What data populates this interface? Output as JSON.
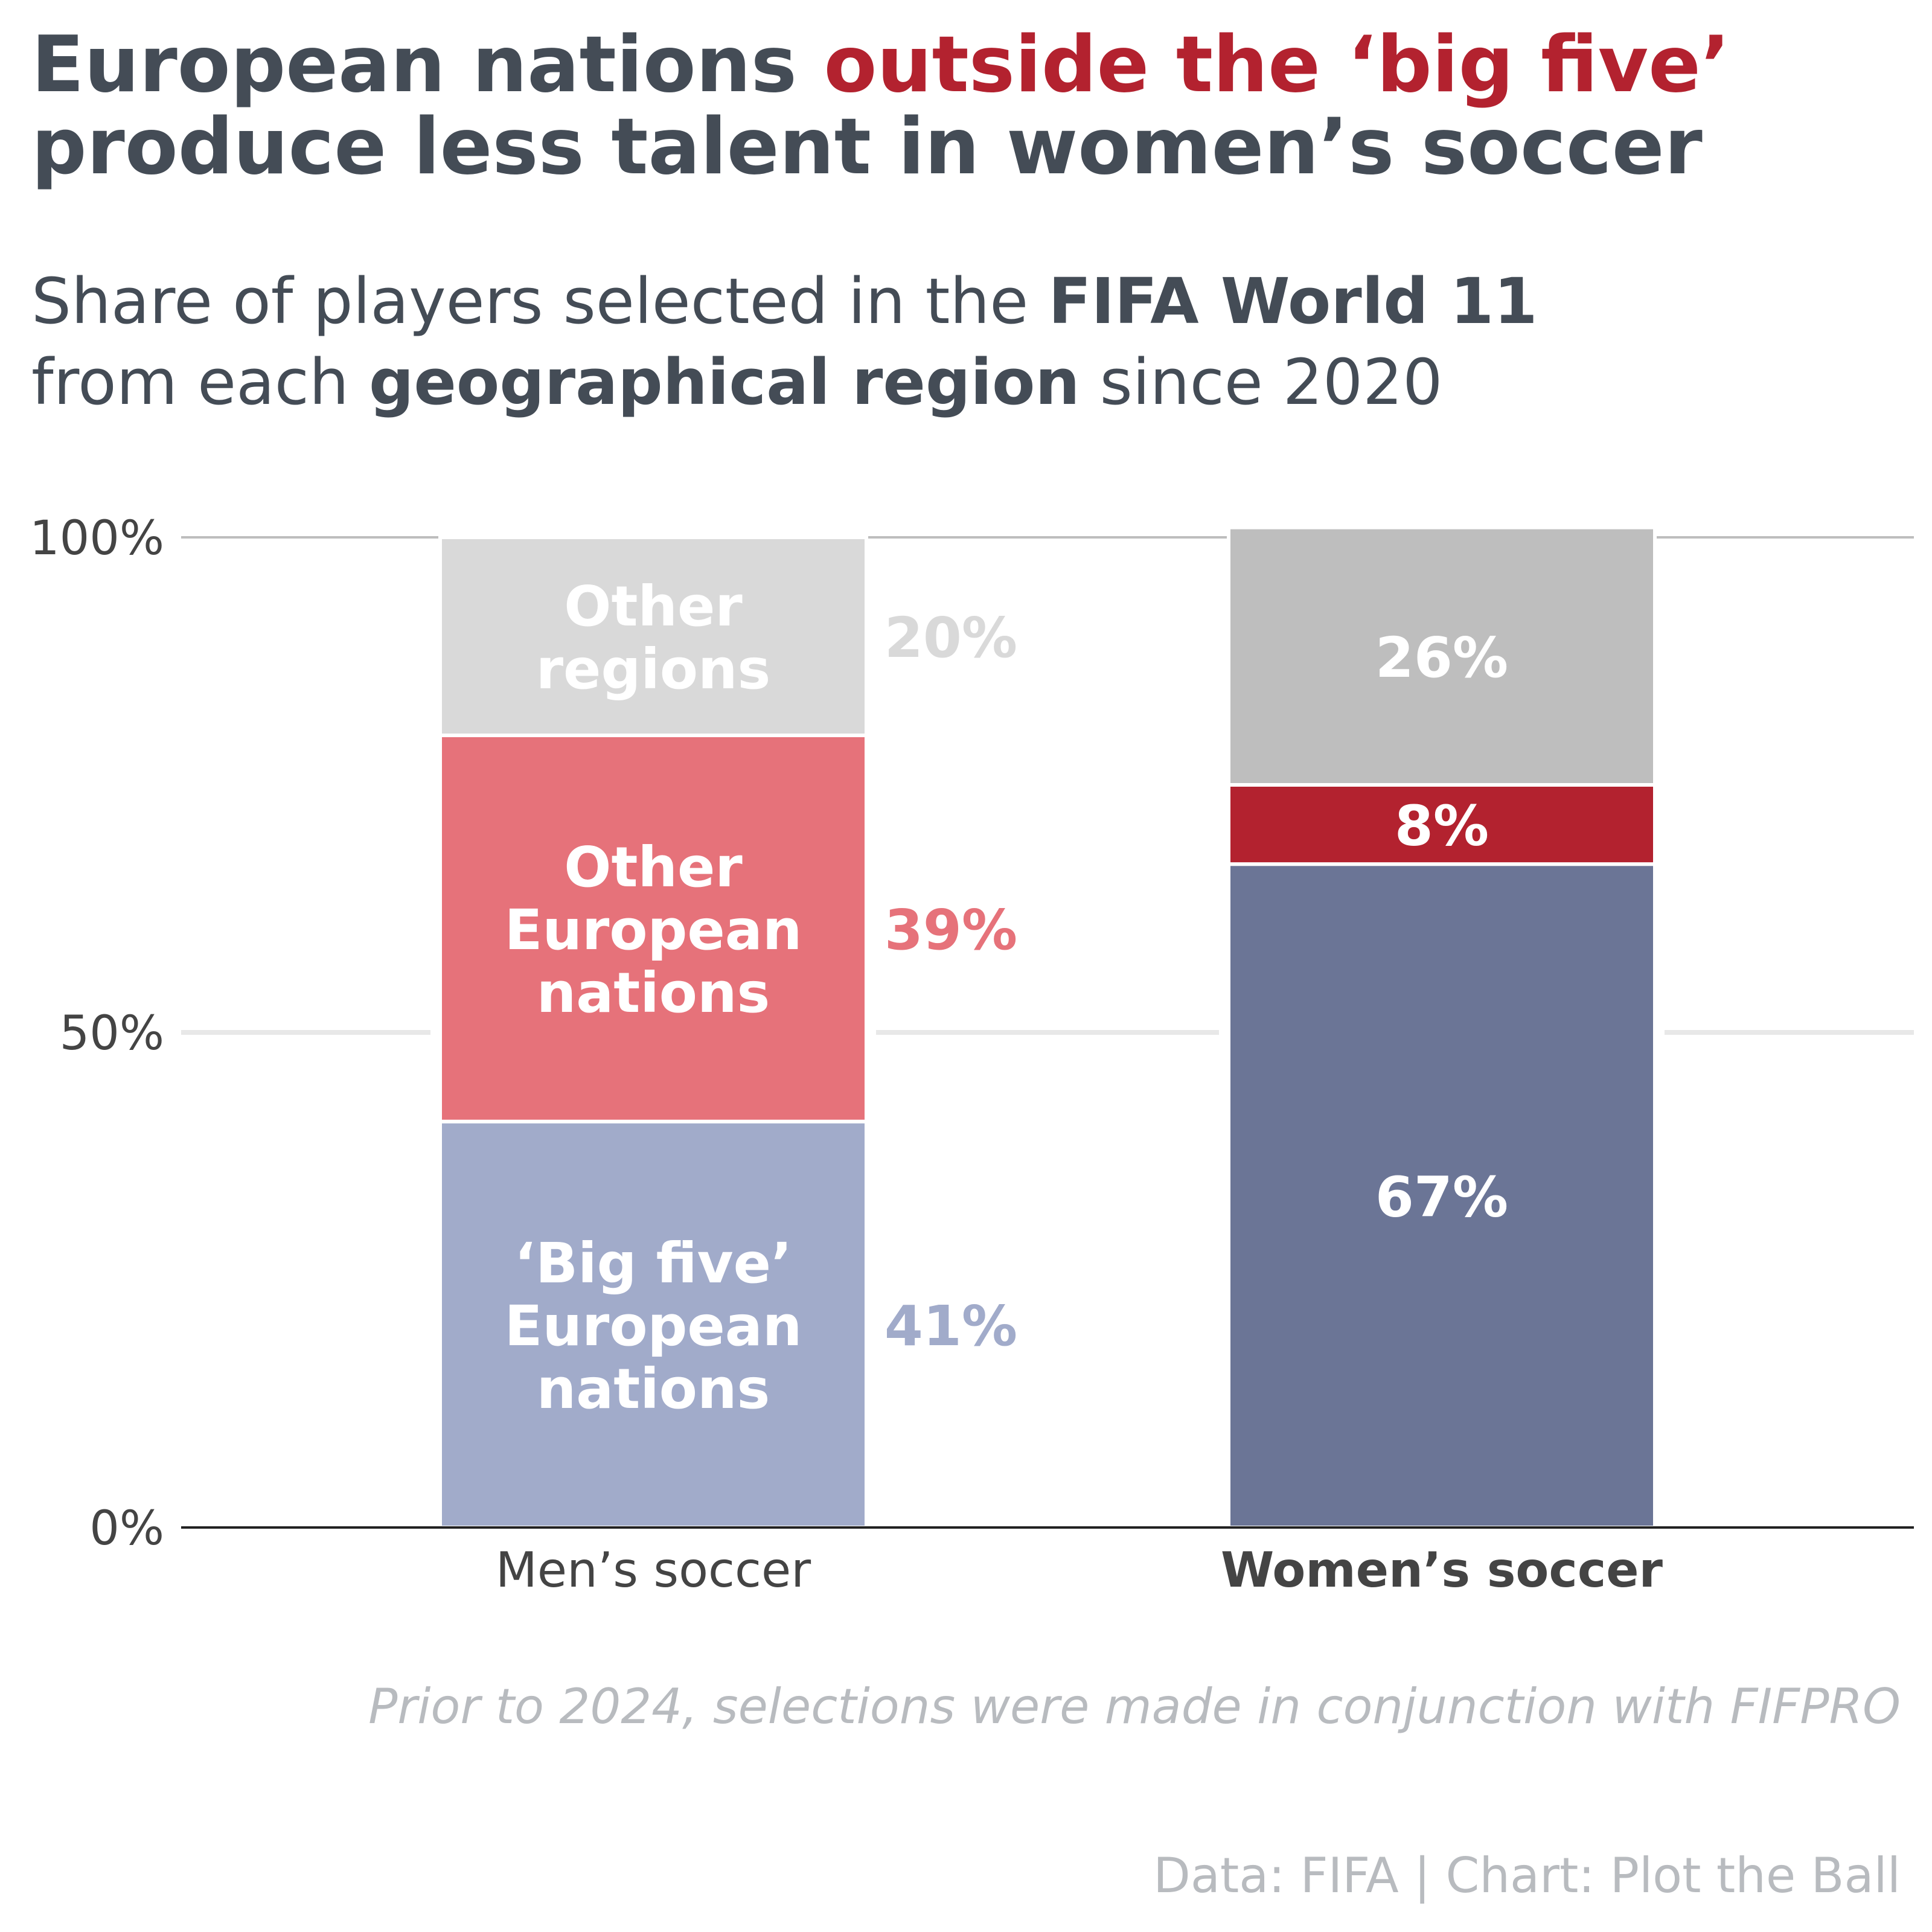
{
  "title": {
    "part1": "European nations ",
    "highlight": "outside the ‘big five’",
    "part2": "produce less talent in women’s soccer"
  },
  "subtitle": {
    "line1_pre": "Share of players selected in the ",
    "line1_bold": "FIFA World 11",
    "line2_pre": "from each ",
    "line2_bold": "geographical region",
    "line2_post": " since 2020"
  },
  "note": "Prior to 2024, selections were made in conjunction with FIFPRO",
  "source": "Data: FIFA | Chart: Plot the Ball",
  "chart_data": {
    "type": "bar",
    "stacked": true,
    "categories": [
      "Men’s soccer",
      "Women’s soccer"
    ],
    "category_bold": [
      false,
      true
    ],
    "ylim": [
      0,
      100
    ],
    "ytick_values": [
      0,
      50,
      100
    ],
    "ytick_labels": [
      "0%",
      "50%",
      "100%"
    ],
    "series": [
      {
        "name": "‘Big five’ European nations",
        "label_lines": [
          "‘Big five’",
          "European",
          "nations"
        ],
        "values": [
          41,
          67
        ],
        "value_labels": [
          "41%",
          "67%"
        ],
        "colors": [
          "#a1abca",
          "#6b7596"
        ]
      },
      {
        "name": "Other European nations",
        "label_lines": [
          "Other",
          "European",
          "nations"
        ],
        "values": [
          39,
          8
        ],
        "value_labels": [
          "39%",
          "8%"
        ],
        "colors": [
          "#e6727a",
          "#b3222f"
        ]
      },
      {
        "name": "Other regions",
        "label_lines": [
          "Other",
          "regions"
        ],
        "values": [
          20,
          26
        ],
        "value_labels": [
          "20%",
          "26%"
        ],
        "colors": [
          "#d9d9d9",
          "#bebebe"
        ]
      }
    ]
  }
}
